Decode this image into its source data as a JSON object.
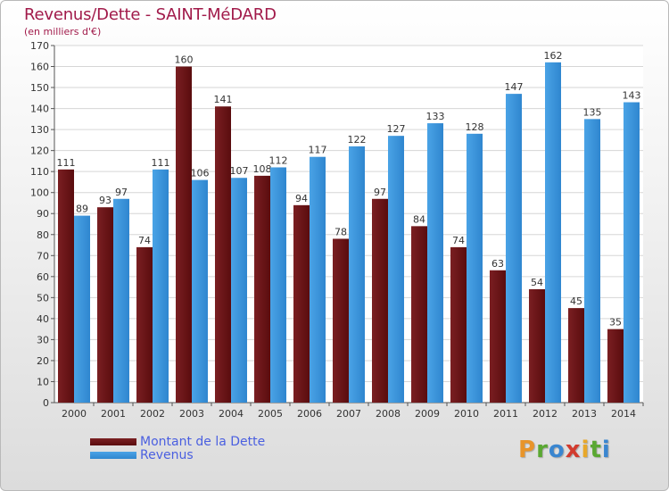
{
  "title": "Revenus/Dette - SAINT-MéDARD",
  "subtitle": "(en milliers d'€)",
  "legend": {
    "debt_label": "Montant de la Dette",
    "revenue_label": "Revenus"
  },
  "logo": {
    "letters": [
      "P",
      "r",
      "o",
      "x",
      "i",
      "t",
      "i"
    ],
    "colors": [
      "#e8942a",
      "#5aa832",
      "#3a86d0",
      "#d23b2e",
      "#e8a82a",
      "#5aa832",
      "#3a86d0"
    ]
  },
  "colors": {
    "debt": "#7a1f22",
    "debt_dark": "#5a0c0e",
    "revenue": "#4aa3e6",
    "revenue_dark": "#2f86cf",
    "title": "#a11a4a",
    "legend_text": "#4a5fe0"
  },
  "chart_data": {
    "type": "bar",
    "categories": [
      "2000",
      "2001",
      "2002",
      "2003",
      "2004",
      "2005",
      "2006",
      "2007",
      "2008",
      "2009",
      "2010",
      "2011",
      "2012",
      "2013",
      "2014"
    ],
    "series": [
      {
        "name": "Montant de la Dette",
        "values": [
          111,
          93,
          74,
          160,
          141,
          108,
          94,
          78,
          97,
          84,
          74,
          63,
          54,
          45,
          35
        ]
      },
      {
        "name": "Revenus",
        "values": [
          89,
          97,
          111,
          106,
          107,
          112,
          117,
          122,
          127,
          133,
          128,
          147,
          162,
          135,
          143
        ]
      }
    ],
    "ylim": [
      0,
      170
    ],
    "yticks": [
      0,
      10,
      20,
      30,
      40,
      50,
      60,
      70,
      80,
      90,
      100,
      110,
      120,
      130,
      140,
      150,
      160,
      170
    ],
    "grid": true,
    "legend_position": "bottom-left"
  }
}
